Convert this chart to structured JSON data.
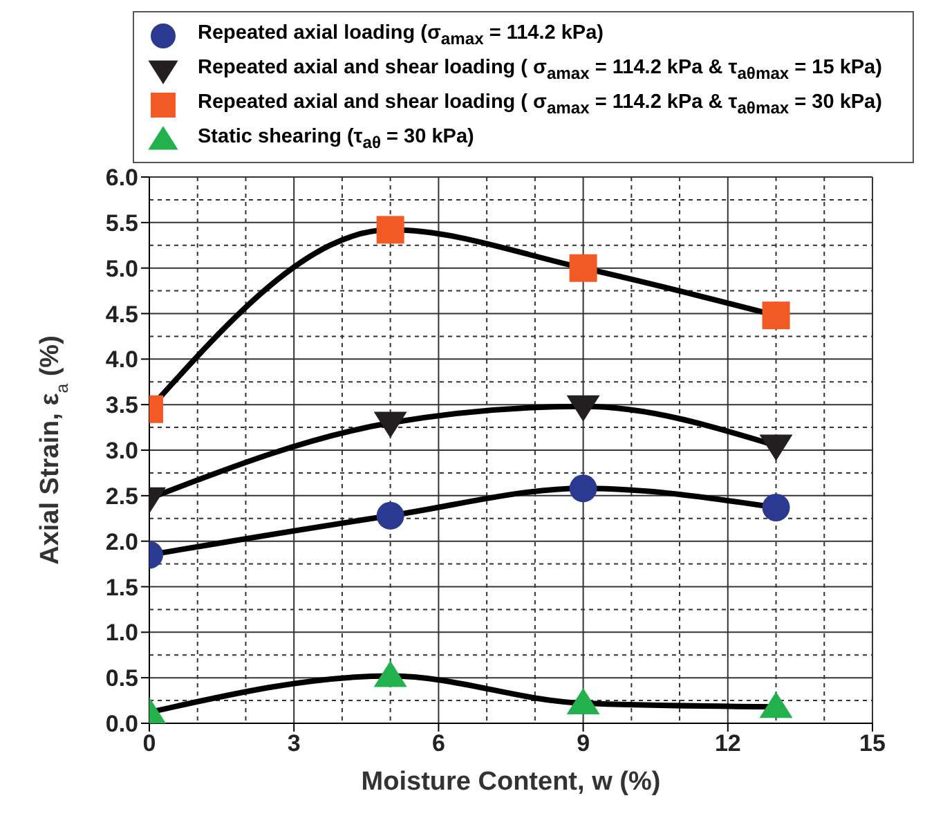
{
  "chart_data": {
    "type": "line",
    "xlabel": "Moisture Content, w (%)",
    "ylabel": "Axial Strain, ε$_{a}$ (%)",
    "x": [
      0,
      5,
      9,
      13
    ],
    "series": [
      {
        "name": "Repeated axial loading (σ$_{amax}$ = 114.2 kPa)",
        "color": "#2b3990",
        "marker": "circle",
        "values": [
          1.85,
          2.28,
          2.58,
          2.37
        ]
      },
      {
        "name": "Repeated axial and shear loading ( σ$_{amax}$ = 114.2 kPa & τ$_{aθmax}$ = 15 kPa)",
        "color": "#231f20",
        "marker": "triangle-down",
        "values": [
          2.47,
          3.3,
          3.48,
          3.05
        ]
      },
      {
        "name": "Repeated axial and shear loading ( σ$_{amax}$ = 114.2 kPa & τ$_{aθmax}$ = 30 kPa)",
        "color": "#f15a24",
        "marker": "square",
        "values": [
          3.45,
          5.42,
          5.0,
          4.48
        ]
      },
      {
        "name": "Static shearing (τ$_{aθ}$ = 30 kPa)",
        "color": "#22b14c",
        "marker": "triangle",
        "values": [
          0.12,
          0.52,
          0.22,
          0.18
        ]
      }
    ],
    "xlim": [
      0,
      15
    ],
    "xticks": [
      0,
      3,
      6,
      9,
      12,
      15
    ],
    "ylim": [
      0,
      6
    ],
    "yticks": [
      {
        "value": 0,
        "label": "0.0"
      },
      {
        "value": 0.5,
        "label": "0.5"
      },
      {
        "value": 1,
        "label": "1.0"
      },
      {
        "value": 1.5,
        "label": "1.5"
      },
      {
        "value": 2,
        "label": "2.0"
      },
      {
        "value": 2.5,
        "label": "2.5"
      },
      {
        "value": 3,
        "label": "3.0"
      },
      {
        "value": 3.5,
        "label": "3.5"
      },
      {
        "value": 4,
        "label": "4.0"
      },
      {
        "value": 4.5,
        "label": "4.5"
      },
      {
        "value": 5,
        "label": "5.0"
      },
      {
        "value": 5.5,
        "label": "5.5"
      },
      {
        "value": 6,
        "label": "6.0"
      }
    ],
    "grid": true,
    "legend": "top",
    "line_style": "solid"
  }
}
